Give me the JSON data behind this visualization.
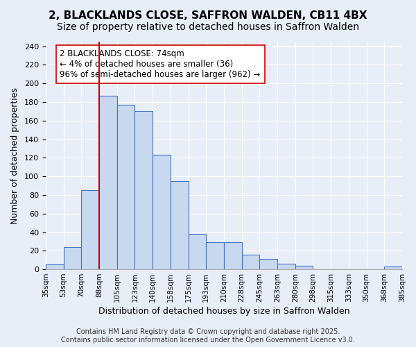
{
  "title": "2, BLACKLANDS CLOSE, SAFFRON WALDEN, CB11 4BX",
  "subtitle": "Size of property relative to detached houses in Saffron Walden",
  "xlabel": "Distribution of detached houses by size in Saffron Walden",
  "ylabel": "Number of detached properties",
  "bin_labels": [
    "35sqm",
    "53sqm",
    "70sqm",
    "88sqm",
    "105sqm",
    "123sqm",
    "140sqm",
    "158sqm",
    "175sqm",
    "193sqm",
    "210sqm",
    "228sqm",
    "245sqm",
    "263sqm",
    "280sqm",
    "298sqm",
    "315sqm",
    "333sqm",
    "350sqm",
    "368sqm",
    "385sqm"
  ],
  "bar_heights": [
    5,
    24,
    85,
    187,
    177,
    170,
    123,
    95,
    38,
    29,
    29,
    16,
    11,
    6,
    4,
    0,
    0,
    0,
    0,
    3
  ],
  "bar_color": "#c8d9ef",
  "bar_edge_color": "#4472c4",
  "vline_color": "#cc0000",
  "vline_position": 2.5,
  "annotation_text": "2 BLACKLANDS CLOSE: 74sqm\n← 4% of detached houses are smaller (36)\n96% of semi-detached houses are larger (962) →",
  "annotation_box_color": "#ffffff",
  "annotation_box_edge": "#cc0000",
  "ylim": [
    0,
    245
  ],
  "yticks": [
    0,
    20,
    40,
    60,
    80,
    100,
    120,
    140,
    160,
    180,
    200,
    220,
    240
  ],
  "background_color": "#e8eef8",
  "footer_text": "Contains HM Land Registry data © Crown copyright and database right 2025.\nContains public sector information licensed under the Open Government Licence v3.0.",
  "title_fontsize": 11,
  "subtitle_fontsize": 10,
  "xlabel_fontsize": 9,
  "ylabel_fontsize": 9,
  "annotation_fontsize": 8.5,
  "footer_fontsize": 7
}
